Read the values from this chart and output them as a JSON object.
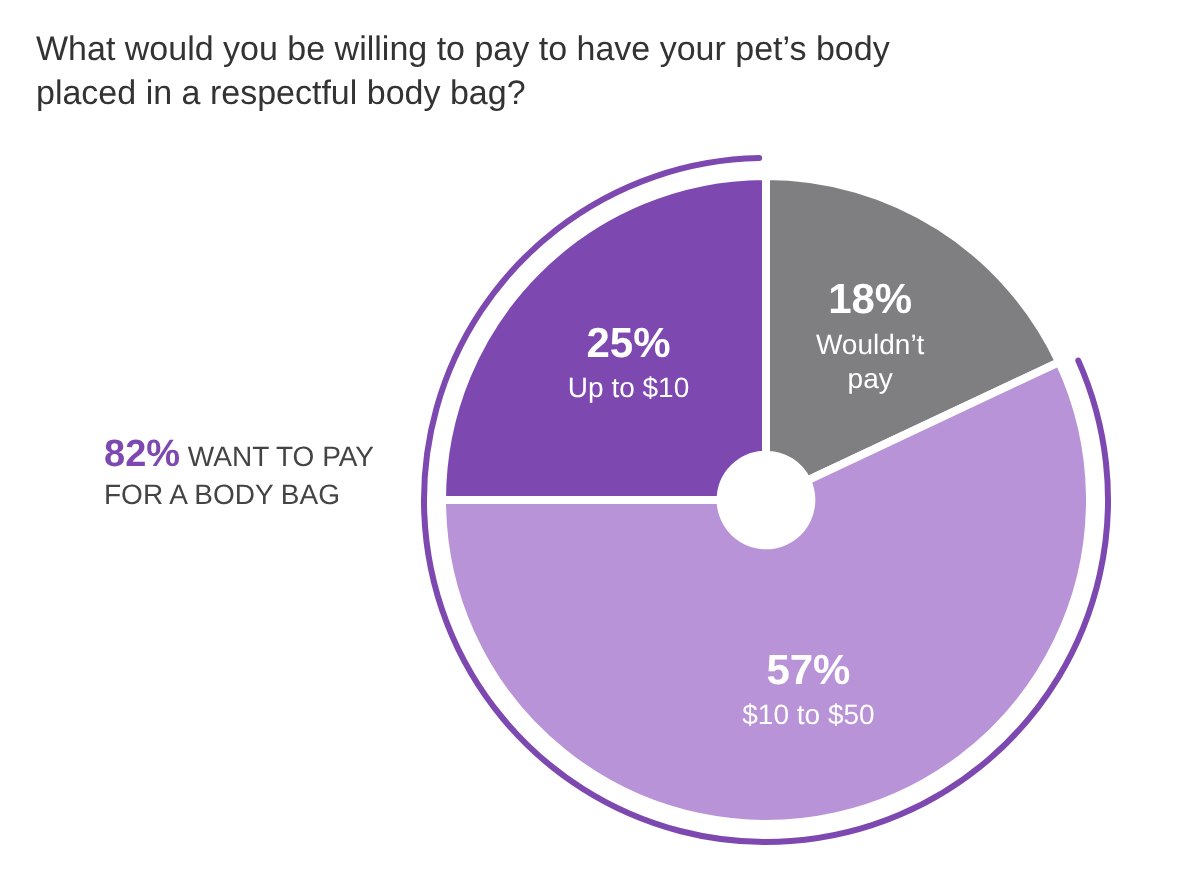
{
  "chart_data": {
    "type": "donut",
    "title": "What would you be willing to pay to have your pet’s body placed in a respectful body bag?",
    "categories": [
      "Wouldn’t pay",
      "$10 to $50",
      "Up to $10"
    ],
    "values": [
      18,
      57,
      25
    ],
    "colors": [
      "#7f7f82",
      "#b993d8",
      "#7d49b0"
    ],
    "value_labels": [
      "18%",
      "57%",
      "25%"
    ],
    "legend": false,
    "annotations": [
      "82% WANT TO PAY FOR A BODY BAG"
    ]
  }
}
